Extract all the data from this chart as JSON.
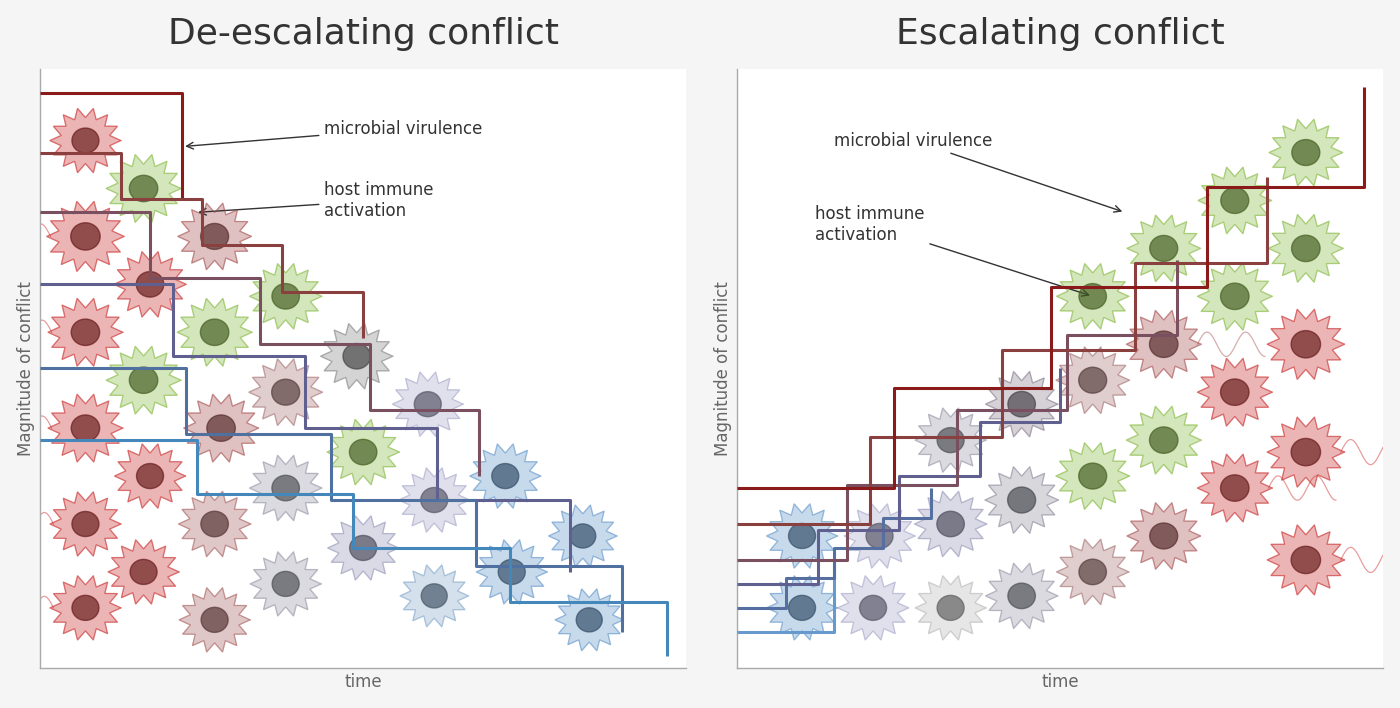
{
  "title_left": "De-escalating conflict",
  "title_right": "Escalating conflict",
  "ylabel": "Magnitude of conflict",
  "xlabel": "time",
  "label_virulence": "microbial virulence",
  "label_immune": "host immune\nactivation",
  "bg_color": "#f5f5f5",
  "panel_bg": "#ffffff",
  "title_fontsize": 26,
  "axis_label_fontsize": 12,
  "annotation_fontsize": 12,
  "stair_colors": [
    "#8B1A1A",
    "#7B3535",
    "#6B5050",
    "#7070A0",
    "#5585B0",
    "#6699CC"
  ],
  "n_steps": 4,
  "virulence_color": "#8B1A1A",
  "immune_color": "#6AAF2E"
}
